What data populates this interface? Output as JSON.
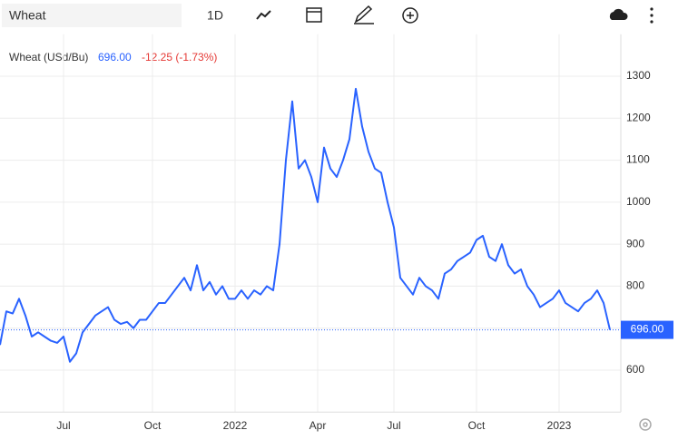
{
  "toolbar": {
    "search": "Wheat",
    "interval": "1D"
  },
  "header": {
    "name": "Wheat (USd/Bu)",
    "price": "696.00",
    "change": "-12.25 (-1.73%)"
  },
  "chart_data": {
    "type": "line",
    "series": [
      {
        "name": "Wheat",
        "color": "#2962ff",
        "values": [
          660,
          740,
          735,
          770,
          730,
          680,
          690,
          680,
          670,
          665,
          680,
          620,
          640,
          690,
          710,
          730,
          740,
          750,
          720,
          710,
          715,
          700,
          720,
          720,
          740,
          760,
          760,
          780,
          800,
          820,
          790,
          850,
          790,
          810,
          780,
          800,
          770,
          770,
          790,
          770,
          790,
          780,
          800,
          790,
          900,
          1100,
          1240,
          1080,
          1100,
          1060,
          1000,
          1130,
          1080,
          1060,
          1100,
          1150,
          1270,
          1180,
          1120,
          1080,
          1070,
          1000,
          940,
          820,
          800,
          780,
          820,
          800,
          790,
          770,
          830,
          840,
          860,
          870,
          880,
          910,
          920,
          870,
          860,
          900,
          850,
          830,
          840,
          800,
          780,
          750,
          760,
          770,
          790,
          760,
          750,
          740,
          760,
          770,
          790,
          760,
          696
        ]
      }
    ],
    "last_label": "696.00",
    "xlim": [
      0,
      97
    ],
    "xticks": [
      {
        "value": 10,
        "label": "Jul"
      },
      {
        "value": 24,
        "label": "Oct"
      },
      {
        "value": 37,
        "label": "2022"
      },
      {
        "value": 50,
        "label": "Apr"
      },
      {
        "value": 62,
        "label": "Jul"
      },
      {
        "value": 75,
        "label": "Oct"
      },
      {
        "value": 88,
        "label": "2023"
      }
    ],
    "ylim": [
      500,
      1400
    ],
    "yticks": [
      600,
      700,
      800,
      900,
      1000,
      1100,
      1200,
      1300
    ],
    "grid": true
  }
}
